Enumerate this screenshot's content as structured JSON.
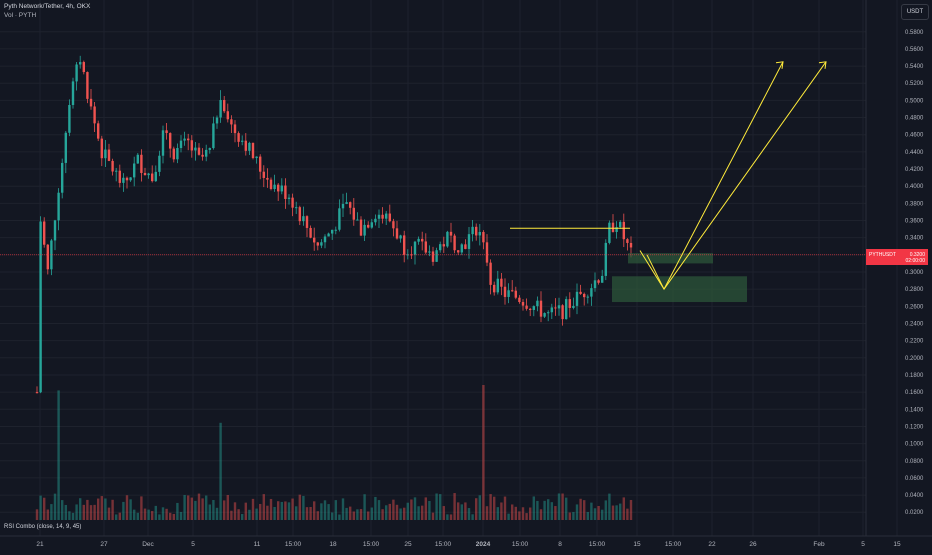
{
  "header": {
    "title": "Pyth Network/Tether, 4h, OKX",
    "volume_label": "Vol · PYTH"
  },
  "currency_button": "USDT",
  "rsi_label": "RSI Combo (close, 14, 9, 45)",
  "price_tag": {
    "symbol": "PYTHUSDT",
    "value": "0.3200",
    "countdown": "02:00:00"
  },
  "colors": {
    "background": "#131722",
    "up": "#26a69a",
    "down": "#ef5350",
    "grid": "#1e222d",
    "projection": "#ffeb3b",
    "zone": "#2e5a3a",
    "price_line": "#f23645"
  },
  "chart_data": {
    "type": "candlestick",
    "title": "Pyth Network/Tether, 4h, OKX",
    "y_axis": {
      "min": 0.0,
      "max": 0.6,
      "ticks": [
        "0.5800",
        "0.5600",
        "0.5400",
        "0.5200",
        "0.5000",
        "0.4800",
        "0.4600",
        "0.4400",
        "0.4200",
        "0.4000",
        "0.3800",
        "0.3600",
        "0.3400",
        "0.3200",
        "0.3000",
        "0.2800",
        "0.2600",
        "0.2400",
        "0.2200",
        "0.2000",
        "0.1800",
        "0.1600",
        "0.1400",
        "0.1200",
        "0.1000",
        "0.0800",
        "0.0600",
        "0.0400",
        "0.0200"
      ]
    },
    "x_axis": {
      "ticks": [
        "21",
        "27",
        "Dec",
        "5",
        "11",
        "15:00",
        "18",
        "15:00",
        "25",
        "15:00",
        "2024",
        "15:00",
        "8",
        "15:00",
        "15",
        "15:00",
        "22",
        "26",
        "Feb",
        "5",
        "15"
      ]
    },
    "last_price": 0.32,
    "price_path": [
      [
        0,
        0.16
      ],
      [
        1,
        0.36
      ],
      [
        3,
        0.3
      ],
      [
        6,
        0.4
      ],
      [
        9,
        0.5
      ],
      [
        12,
        0.55
      ],
      [
        15,
        0.49
      ],
      [
        18,
        0.44
      ],
      [
        21,
        0.42
      ],
      [
        24,
        0.4
      ],
      [
        28,
        0.43
      ],
      [
        32,
        0.41
      ],
      [
        35,
        0.46
      ],
      [
        38,
        0.44
      ],
      [
        42,
        0.45
      ],
      [
        45,
        0.43
      ],
      [
        48,
        0.44
      ],
      [
        51,
        0.51
      ],
      [
        54,
        0.47
      ],
      [
        58,
        0.45
      ],
      [
        62,
        0.42
      ],
      [
        66,
        0.4
      ],
      [
        70,
        0.39
      ],
      [
        74,
        0.36
      ],
      [
        78,
        0.33
      ],
      [
        82,
        0.35
      ],
      [
        86,
        0.38
      ],
      [
        90,
        0.35
      ],
      [
        94,
        0.37
      ],
      [
        98,
        0.36
      ],
      [
        102,
        0.33
      ],
      [
        106,
        0.33
      ],
      [
        110,
        0.32
      ],
      [
        114,
        0.34
      ],
      [
        118,
        0.33
      ],
      [
        122,
        0.35
      ],
      [
        124,
        0.34
      ],
      [
        126,
        0.29
      ],
      [
        130,
        0.275
      ],
      [
        134,
        0.27
      ],
      [
        138,
        0.26
      ],
      [
        142,
        0.25
      ],
      [
        146,
        0.255
      ],
      [
        150,
        0.27
      ],
      [
        154,
        0.285
      ],
      [
        157,
        0.3
      ],
      [
        159,
        0.35
      ],
      [
        161,
        0.36
      ],
      [
        163,
        0.34
      ],
      [
        165,
        0.32
      ]
    ],
    "volume_spike_bars": [
      {
        "bar": 6,
        "volume": 0.24
      },
      {
        "bar": 51,
        "volume": 0.18
      },
      {
        "bar": 124,
        "volume": 0.25
      }
    ],
    "annotations": {
      "resistance_line": {
        "price": 0.351
      },
      "demand_zones": [
        {
          "top": 0.322,
          "bottom": 0.31
        },
        {
          "top": 0.295,
          "bottom": 0.265
        }
      ],
      "projection_paths": [
        [
          [
            0.32
          ],
          [
            0.28
          ],
          [
            0.545
          ]
        ],
        [
          [
            0.545
          ]
        ]
      ]
    }
  }
}
